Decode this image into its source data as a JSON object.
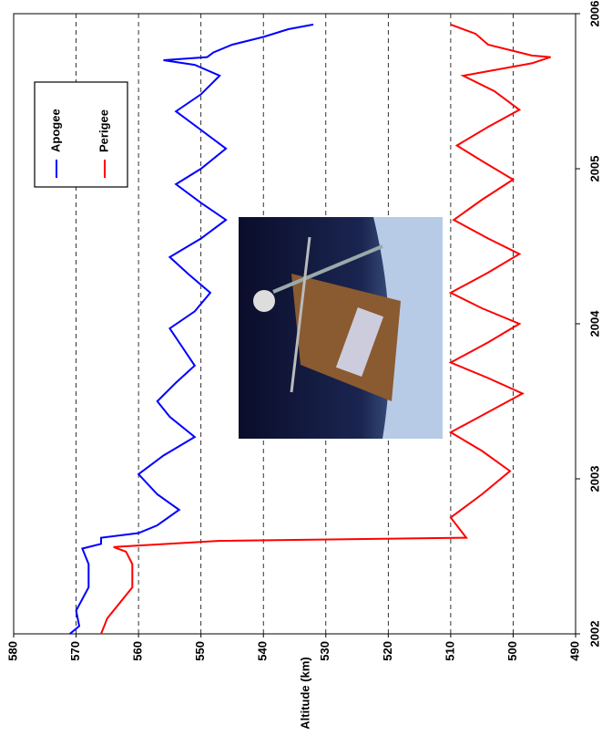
{
  "chart_data": {
    "type": "line",
    "y_label": "Altitude (km)",
    "xlim": [
      2002,
      2006
    ],
    "xticks": [
      2002,
      2003,
      2004,
      2005,
      2006
    ],
    "ylim": [
      490,
      580
    ],
    "yticks": [
      490,
      500,
      510,
      520,
      530,
      540,
      550,
      560,
      570,
      580
    ],
    "grid": true,
    "legend": "upper right",
    "series": [
      {
        "name": "Apogee",
        "color": "#0000ff",
        "x": [
          2002.0,
          2002.05,
          2002.15,
          2002.3,
          2002.45,
          2002.55,
          2002.58,
          2002.62,
          2002.65,
          2002.7,
          2002.8,
          2002.9,
          2003.03,
          2003.15,
          2003.27,
          2003.4,
          2003.5,
          2003.62,
          2003.73,
          2003.85,
          2003.97,
          2004.08,
          2004.2,
          2004.32,
          2004.43,
          2004.55,
          2004.67,
          2004.78,
          2004.9,
          2005.0,
          2005.13,
          2005.25,
          2005.37,
          2005.48,
          2005.6,
          2005.67,
          2005.7,
          2005.72,
          2005.75,
          2005.8,
          2005.85,
          2005.9,
          2005.93
        ],
        "values": [
          571,
          569.5,
          570,
          568,
          568,
          569,
          566,
          566,
          560,
          557,
          553.5,
          557,
          560,
          556,
          551,
          555,
          557,
          554,
          551,
          553,
          555,
          551,
          548.5,
          552,
          555,
          550,
          546,
          550,
          554,
          550,
          546,
          550,
          554,
          550,
          547,
          551,
          556,
          549,
          548,
          545,
          540,
          536,
          532
        ]
      },
      {
        "name": "Perigee",
        "color": "#ff0000",
        "x": [
          2002.0,
          2002.1,
          2002.3,
          2002.45,
          2002.53,
          2002.56,
          2002.6,
          2002.62,
          2002.75,
          2002.9,
          2003.05,
          2003.18,
          2003.3,
          2003.43,
          2003.55,
          2003.65,
          2003.75,
          2003.88,
          2004.0,
          2004.1,
          2004.2,
          2004.33,
          2004.45,
          2004.55,
          2004.67,
          2004.8,
          2004.93,
          2005.05,
          2005.15,
          2005.27,
          2005.38,
          2005.5,
          2005.6,
          2005.68,
          2005.72,
          2005.73,
          2005.8,
          2005.87,
          2005.93
        ],
        "values": [
          566,
          565,
          561,
          561,
          562,
          564,
          547,
          507.5,
          510,
          505,
          500.5,
          505,
          510,
          504,
          498.5,
          504,
          510,
          504,
          499,
          505,
          510,
          504,
          499,
          504,
          509.5,
          505,
          500,
          505,
          509,
          504,
          499,
          503,
          508,
          497,
          494,
          497,
          504,
          506,
          510
        ]
      }
    ]
  }
}
